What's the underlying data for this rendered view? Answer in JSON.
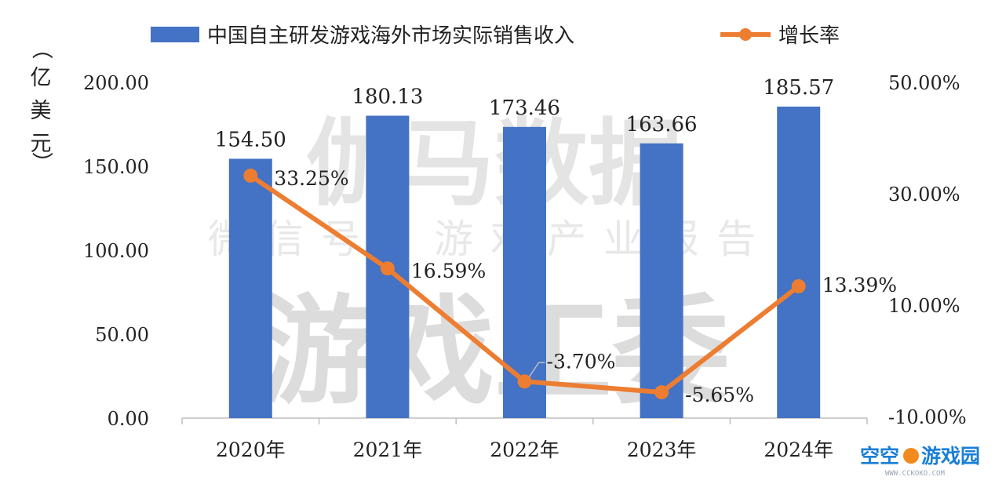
{
  "watermarks": {
    "line1": "伽马数据",
    "line2": "微信号：游戏产业报告",
    "line3": "游戏工委"
  },
  "corner_logo": {
    "text": "空空",
    "text2": "游戏园",
    "url": "WWW.CCKOKO.COM"
  },
  "colors": {
    "bar": "#4472c4",
    "line": "#ed7d31",
    "axis": "#bfbfbf"
  },
  "chart_data": {
    "type": "bar",
    "categories": [
      "2020年",
      "2021年",
      "2022年",
      "2023年",
      "2024年"
    ],
    "series": [
      {
        "name": "中国自主研发游戏海外市场实际销售收入",
        "type": "bar",
        "axis": "left",
        "values": [
          154.5,
          180.13,
          173.46,
          163.66,
          185.57
        ],
        "labels": [
          "154.50",
          "180.13",
          "173.46",
          "163.66",
          "185.57"
        ]
      },
      {
        "name": "增长率",
        "type": "line",
        "axis": "right",
        "values": [
          33.25,
          16.59,
          -3.7,
          -5.65,
          13.39
        ],
        "labels": [
          "33.25%",
          "16.59%",
          "-3.70%",
          "-5.65%",
          "13.39%"
        ]
      }
    ],
    "ylabel": "（亿美元）",
    "ylim": [
      0,
      200
    ],
    "yticks": [
      "0.00",
      "50.00",
      "100.00",
      "150.00",
      "200.00"
    ],
    "y2lim": [
      -10,
      50
    ],
    "y2ticks": [
      "-10.00%",
      "10.00%",
      "30.00%",
      "50.00%"
    ],
    "legend_position": "top"
  }
}
